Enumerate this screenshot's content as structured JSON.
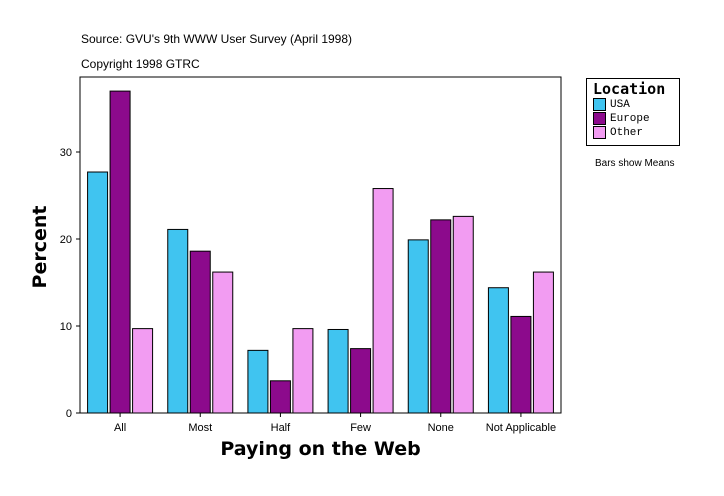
{
  "chart_data": {
    "type": "bar",
    "subtitle_lines": [
      "Source: GVU's 9th WWW User Survey (April 1998)",
      "Copyright 1998 GTRC"
    ],
    "xlabel": "Paying on the Web",
    "ylabel": "Percent",
    "categories": [
      "All",
      "Most",
      "Half",
      "Few",
      "None",
      "Not Applicable"
    ],
    "ylim": [
      0,
      38.5
    ],
    "yticks": [
      0,
      10,
      20,
      30
    ],
    "grid": false,
    "legend": {
      "title": "Location",
      "placement": "right"
    },
    "note": "Bars show Means",
    "series": [
      {
        "name": "USA",
        "color": "#40C4F0",
        "values": [
          27.7,
          21.1,
          7.2,
          9.6,
          19.9,
          14.4
        ]
      },
      {
        "name": "Europe",
        "color": "#8C0A8C",
        "values": [
          37.0,
          18.6,
          3.7,
          7.4,
          22.2,
          11.1
        ]
      },
      {
        "name": "Other",
        "color": "#F29CF2",
        "values": [
          9.7,
          16.2,
          9.7,
          25.8,
          22.6,
          16.2
        ]
      }
    ]
  }
}
